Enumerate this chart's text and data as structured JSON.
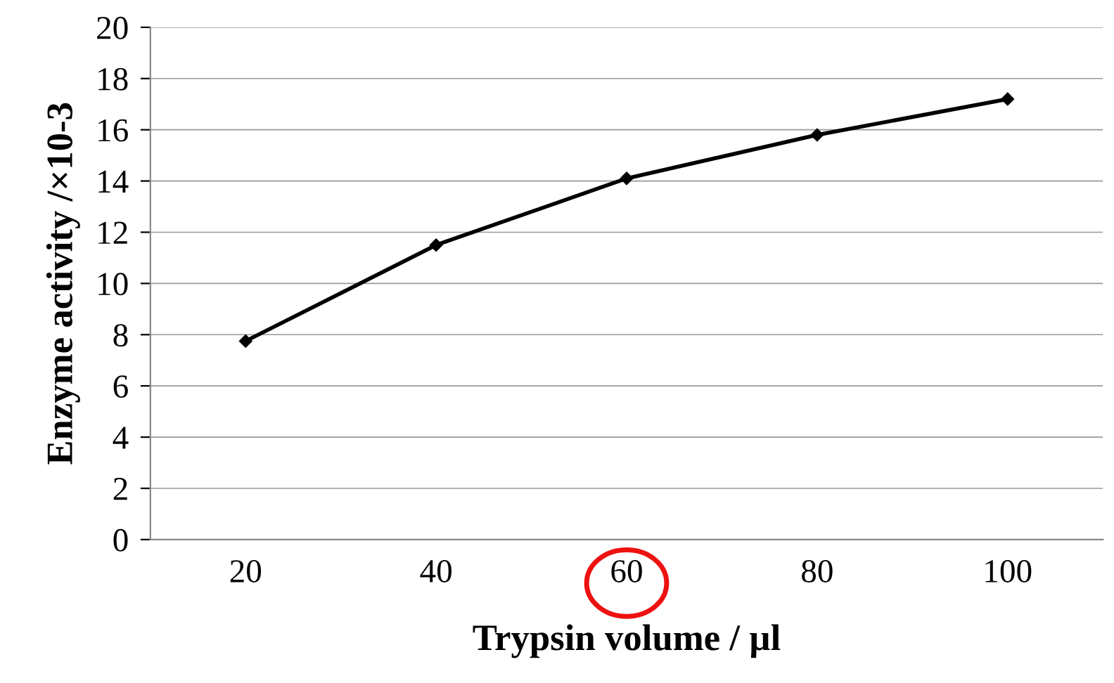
{
  "chart_data": {
    "type": "line",
    "xlabel": "Trypsin volume / µl",
    "ylabel": "Enzyme activity /×10-3",
    "categories": [
      "20",
      "40",
      "60",
      "80",
      "100"
    ],
    "series": [
      {
        "color": "#000000",
        "values": [
          7.75,
          11.5,
          14.1,
          15.8,
          17.2
        ]
      }
    ],
    "ylim": [
      0,
      20
    ],
    "yticks": [
      0,
      2,
      4,
      6,
      8,
      10,
      12,
      14,
      16,
      18,
      20
    ],
    "grid": "y",
    "marker": "diamond",
    "line_style": "solid"
  }
}
